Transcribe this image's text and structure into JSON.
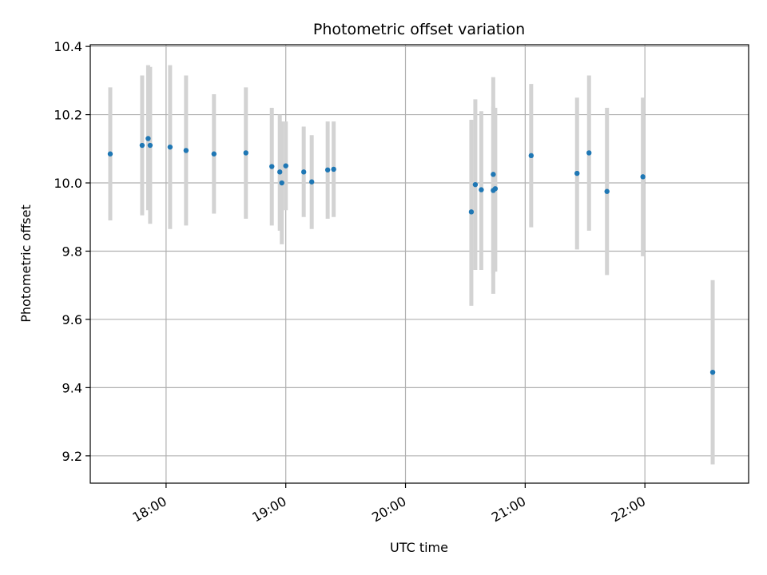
{
  "chart_data": {
    "type": "scatter",
    "title": "Photometric offset variation",
    "xlabel": "UTC time",
    "ylabel": "Photometric offset",
    "x_ticks": [
      "18:00",
      "19:00",
      "20:00",
      "21:00",
      "22:00"
    ],
    "y_ticks": [
      "9.2",
      "9.4",
      "9.6",
      "9.8",
      "10.0",
      "10.2",
      "10.4"
    ],
    "xlim": [
      "17:22",
      "22:52"
    ],
    "ylim": [
      9.12,
      10.405
    ],
    "grid": true,
    "colors": {
      "point": "#1f77b4",
      "errorbar": "#d3d3d3",
      "grid": "#b0b0b0"
    },
    "points": [
      {
        "t": "17:32",
        "y": 10.085,
        "lo": 9.89,
        "hi": 10.28
      },
      {
        "t": "17:48",
        "y": 10.11,
        "lo": 9.905,
        "hi": 10.315
      },
      {
        "t": "17:51",
        "y": 10.13,
        "lo": 9.92,
        "hi": 10.345
      },
      {
        "t": "17:52",
        "y": 10.11,
        "lo": 9.88,
        "hi": 10.34
      },
      {
        "t": "18:02",
        "y": 10.105,
        "lo": 9.865,
        "hi": 10.345
      },
      {
        "t": "18:10",
        "y": 10.095,
        "lo": 9.875,
        "hi": 10.315
      },
      {
        "t": "18:24",
        "y": 10.085,
        "lo": 9.91,
        "hi": 10.26
      },
      {
        "t": "18:40",
        "y": 10.088,
        "lo": 9.895,
        "hi": 10.28
      },
      {
        "t": "18:53",
        "y": 10.048,
        "lo": 9.875,
        "hi": 10.22
      },
      {
        "t": "18:57",
        "y": 10.032,
        "lo": 9.86,
        "hi": 10.2
      },
      {
        "t": "18:58",
        "y": 10.0,
        "lo": 9.82,
        "hi": 10.18
      },
      {
        "t": "19:00",
        "y": 10.05,
        "lo": 9.92,
        "hi": 10.18
      },
      {
        "t": "19:09",
        "y": 10.032,
        "lo": 9.9,
        "hi": 10.165
      },
      {
        "t": "19:13",
        "y": 10.003,
        "lo": 9.865,
        "hi": 10.14
      },
      {
        "t": "19:21",
        "y": 10.038,
        "lo": 9.895,
        "hi": 10.18
      },
      {
        "t": "19:24",
        "y": 10.04,
        "lo": 9.9,
        "hi": 10.18
      },
      {
        "t": "20:33",
        "y": 9.915,
        "lo": 9.64,
        "hi": 10.185
      },
      {
        "t": "20:35",
        "y": 9.995,
        "lo": 9.745,
        "hi": 10.245
      },
      {
        "t": "20:38",
        "y": 9.98,
        "lo": 9.745,
        "hi": 10.21
      },
      {
        "t": "20:44",
        "y": 10.025,
        "lo": 9.675,
        "hi": 10.31
      },
      {
        "t": "20:44",
        "y": 9.978,
        "lo": 9.735,
        "hi": 10.225
      },
      {
        "t": "20:45",
        "y": 9.983,
        "lo": 9.74,
        "hi": 10.22
      },
      {
        "t": "21:03",
        "y": 10.08,
        "lo": 9.87,
        "hi": 10.29
      },
      {
        "t": "21:26",
        "y": 10.028,
        "lo": 9.805,
        "hi": 10.25
      },
      {
        "t": "21:32",
        "y": 10.088,
        "lo": 9.86,
        "hi": 10.315
      },
      {
        "t": "21:41",
        "y": 9.975,
        "lo": 9.73,
        "hi": 10.22
      },
      {
        "t": "21:59",
        "y": 10.018,
        "lo": 9.785,
        "hi": 10.25
      },
      {
        "t": "22:34",
        "y": 9.445,
        "lo": 9.175,
        "hi": 9.715
      }
    ]
  }
}
